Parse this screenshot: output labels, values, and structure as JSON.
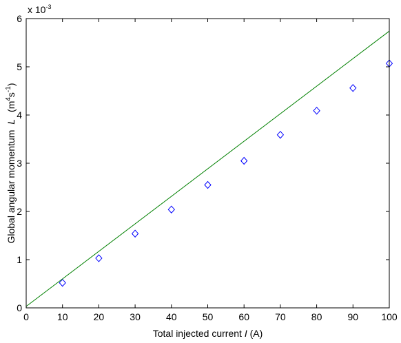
{
  "chart_data": {
    "type": "scatter",
    "title": "",
    "xlabel": "Total injected current",
    "xlabel_var": "I",
    "xlabel_unit": "(A)",
    "ylabel": "Global angular momentum",
    "ylabel_var": "L",
    "ylabel_unit_open": "(m",
    "ylabel_unit_exp1": "4",
    "ylabel_unit_mid": "s",
    "ylabel_unit_exp2": "-1",
    "ylabel_unit_close": ")",
    "y_multiplier": "x 10",
    "y_multiplier_exp": "-3",
    "xlim": [
      0,
      100
    ],
    "ylim": [
      0,
      6
    ],
    "xticks": [
      0,
      10,
      20,
      30,
      40,
      50,
      60,
      70,
      80,
      90,
      100
    ],
    "yticks": [
      0,
      1,
      2,
      3,
      4,
      5,
      6
    ],
    "grid": false,
    "series": [
      {
        "type": "scatter",
        "marker": "diamond",
        "color": "#0000ff",
        "x": [
          10,
          20,
          30,
          40,
          50,
          60,
          70,
          80,
          90,
          100
        ],
        "y": [
          0.52,
          1.03,
          1.54,
          2.04,
          2.55,
          3.05,
          3.59,
          4.09,
          4.56,
          5.07
        ]
      },
      {
        "type": "line",
        "color": "#008000",
        "x": [
          0,
          100
        ],
        "y": [
          0.03,
          5.74
        ]
      }
    ]
  }
}
